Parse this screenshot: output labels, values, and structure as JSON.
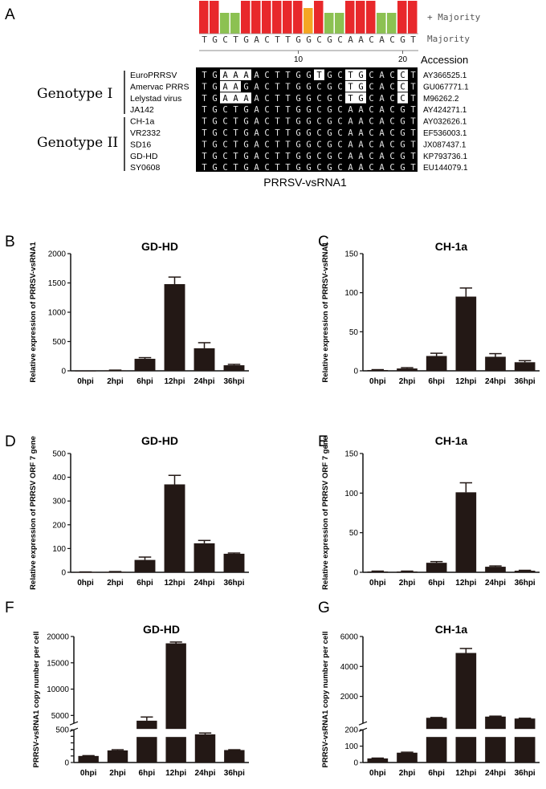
{
  "panel_a": {
    "letter": "A",
    "majority_plus_label": "+ Majority",
    "majority_label": "Majority",
    "majority_seq": [
      "T",
      "G",
      "C",
      "T",
      "G",
      "A",
      "C",
      "T",
      "T",
      "G",
      "G",
      "C",
      "G",
      "C",
      "A",
      "A",
      "C",
      "A",
      "C",
      "G",
      "T"
    ],
    "conservation": [
      "red",
      "red",
      "green",
      "green",
      "red",
      "red",
      "red",
      "red",
      "red",
      "red",
      "orange",
      "red",
      "green",
      "green",
      "red",
      "red",
      "red",
      "green",
      "green",
      "red",
      "red"
    ],
    "ruler_ticks": [
      "10",
      "20"
    ],
    "accession_header": "Accession",
    "genotype_1_label": "Genotype I",
    "genotype_2_label": "Genotype II",
    "rows": [
      {
        "strain": "EuroPRRSV",
        "seq": [
          "T",
          "G",
          "A",
          "A",
          "A",
          "A",
          "C",
          "T",
          "T",
          "G",
          "G",
          "T",
          "G",
          "C",
          "T",
          "G",
          "C",
          "A",
          "C",
          "C",
          "T"
        ],
        "accession": "AY366525.1"
      },
      {
        "strain": "Amervac PRRS",
        "seq": [
          "T",
          "G",
          "A",
          "A",
          "G",
          "A",
          "C",
          "T",
          "T",
          "G",
          "G",
          "C",
          "G",
          "C",
          "T",
          "G",
          "C",
          "A",
          "C",
          "C",
          "T"
        ],
        "accession": "GU067771.1"
      },
      {
        "strain": "Lelystad virus",
        "seq": [
          "T",
          "G",
          "A",
          "A",
          "A",
          "A",
          "C",
          "T",
          "T",
          "G",
          "G",
          "C",
          "G",
          "C",
          "T",
          "G",
          "C",
          "A",
          "C",
          "C",
          "T"
        ],
        "accession": "M96262.2"
      },
      {
        "strain": "JA142",
        "seq": [
          "T",
          "G",
          "C",
          "T",
          "G",
          "A",
          "C",
          "T",
          "T",
          "G",
          "G",
          "C",
          "G",
          "C",
          "A",
          "A",
          "C",
          "A",
          "C",
          "G",
          "T"
        ],
        "accession": "AY424271.1"
      },
      {
        "strain": "CH-1a",
        "seq": [
          "T",
          "G",
          "C",
          "T",
          "G",
          "A",
          "C",
          "T",
          "T",
          "G",
          "G",
          "C",
          "G",
          "C",
          "A",
          "A",
          "C",
          "A",
          "C",
          "G",
          "T"
        ],
        "accession": "AY032626.1"
      },
      {
        "strain": "VR2332",
        "seq": [
          "T",
          "G",
          "C",
          "T",
          "G",
          "A",
          "C",
          "T",
          "T",
          "G",
          "G",
          "C",
          "G",
          "C",
          "A",
          "A",
          "C",
          "A",
          "C",
          "G",
          "T"
        ],
        "accession": "EF536003.1"
      },
      {
        "strain": "SD16",
        "seq": [
          "T",
          "G",
          "C",
          "T",
          "G",
          "A",
          "C",
          "T",
          "T",
          "G",
          "G",
          "C",
          "G",
          "C",
          "A",
          "A",
          "C",
          "A",
          "C",
          "G",
          "T"
        ],
        "accession": "JX087437.1"
      },
      {
        "strain": "GD-HD",
        "seq": [
          "T",
          "G",
          "C",
          "T",
          "G",
          "A",
          "C",
          "T",
          "T",
          "G",
          "G",
          "C",
          "G",
          "C",
          "A",
          "A",
          "C",
          "A",
          "C",
          "G",
          "T"
        ],
        "accession": "KP793736.1"
      },
      {
        "strain": "SY0608",
        "seq": [
          "T",
          "G",
          "C",
          "T",
          "G",
          "A",
          "C",
          "T",
          "T",
          "G",
          "G",
          "C",
          "G",
          "C",
          "A",
          "A",
          "C",
          "A",
          "C",
          "G",
          "T"
        ],
        "accession": "EU144079.1"
      }
    ],
    "caption": "PRRSV-vsRNA1",
    "colors": {
      "red": "#e8282b",
      "green": "#8cc152",
      "orange": "#f5a623"
    }
  },
  "chart_data": [
    {
      "panel": "B",
      "type": "bar",
      "title": "GD-HD",
      "ylabel": "Relative expression of PRRSV-vsRNA1",
      "categories": [
        "0hpi",
        "2hpi",
        "6hpi",
        "12hpi",
        "24hpi",
        "36hpi"
      ],
      "values": [
        1,
        8,
        205,
        1480,
        385,
        95
      ],
      "errors": [
        0,
        4,
        20,
        120,
        95,
        15
      ],
      "ylim": [
        0,
        2000
      ],
      "ticks": [
        "0",
        "500",
        "1000",
        "1500",
        "2000"
      ],
      "tick_values": [
        0,
        500,
        1000,
        1500,
        2000
      ]
    },
    {
      "panel": "C",
      "type": "bar",
      "title": "CH-1a",
      "ylabel": "Relative expression of PRRSV-vsRNA1",
      "categories": [
        "0hpi",
        "2hpi",
        "6hpi",
        "12hpi",
        "24hpi",
        "36hpi"
      ],
      "values": [
        1,
        3,
        19,
        95,
        18,
        11
      ],
      "errors": [
        0.5,
        1,
        3.5,
        11,
        4,
        2
      ],
      "ylim": [
        0,
        150
      ],
      "ticks": [
        "0",
        "50",
        "100",
        "150"
      ],
      "tick_values": [
        0,
        50,
        100,
        150
      ]
    },
    {
      "panel": "D",
      "type": "bar",
      "title": "GD-HD",
      "ylabel": "Relative expression of PRRSV ORF 7 gene",
      "categories": [
        "0hpi",
        "2hpi",
        "6hpi",
        "12hpi",
        "24hpi",
        "36hpi"
      ],
      "values": [
        1,
        2,
        52,
        370,
        122,
        78
      ],
      "errors": [
        0.5,
        1,
        12,
        38,
        12,
        3
      ],
      "ylim": [
        0,
        500
      ],
      "ticks": [
        "0",
        "100",
        "200",
        "300",
        "400",
        "500"
      ],
      "tick_values": [
        0,
        100,
        200,
        300,
        400,
        500
      ]
    },
    {
      "panel": "E",
      "type": "bar",
      "title": "CH-1a",
      "ylabel": "Relative expression of PRRSV ORF 7 gene",
      "categories": [
        "0hpi",
        "2hpi",
        "6hpi",
        "12hpi",
        "24hpi",
        "36hpi"
      ],
      "values": [
        1,
        1,
        12,
        101,
        7,
        2
      ],
      "errors": [
        0.5,
        0.5,
        1.5,
        12,
        1,
        0.5
      ],
      "ylim": [
        0,
        150
      ],
      "ticks": [
        "0",
        "50",
        "100",
        "150"
      ],
      "tick_values": [
        0,
        50,
        100,
        150
      ]
    },
    {
      "panel": "F",
      "type": "bar",
      "title": "GD-HD",
      "ylabel": "PRRSV-vsRNA1 copy number per cell",
      "categories": [
        "0hpi",
        "2hpi",
        "6hpi",
        "12hpi",
        "24hpi",
        "36hpi"
      ],
      "values": [
        100,
        185,
        4000,
        18700,
        430,
        190
      ],
      "errors": [
        5,
        10,
        700,
        250,
        20,
        5
      ],
      "broken_axis": {
        "lower": [
          0,
          500
        ],
        "upper": [
          3500,
          20000
        ]
      },
      "ticks": [
        "0",
        "100",
        "200",
        "300",
        "400",
        "500",
        "5000",
        "10000",
        "15000",
        "20000"
      ],
      "tick_values": [
        0,
        100,
        200,
        300,
        400,
        500,
        5000,
        10000,
        15000,
        20000
      ],
      "tick_labels_shown": [
        "0",
        "500",
        "5000",
        "10000",
        "15000",
        "20000"
      ]
    },
    {
      "panel": "G",
      "type": "bar",
      "title": "CH-1a",
      "ylabel": "PRRSV-vsRNA1 copy number per cell",
      "categories": [
        "0hpi",
        "2hpi",
        "6hpi",
        "12hpi",
        "24hpi",
        "36hpi"
      ],
      "values": [
        25,
        60,
        570,
        4900,
        650,
        520
      ],
      "errors": [
        2,
        3,
        20,
        300,
        30,
        20
      ],
      "broken_axis": {
        "lower": [
          0,
          200
        ],
        "upper": [
          200,
          6000
        ]
      },
      "ticks": [
        "0",
        "100",
        "200",
        "2000",
        "4000",
        "6000"
      ],
      "tick_values": [
        0,
        100,
        200,
        2000,
        4000,
        6000
      ],
      "tick_labels_shown": [
        "0",
        "100",
        "200",
        "2000",
        "4000",
        "6000"
      ]
    }
  ],
  "colors": {
    "bar": "#231815",
    "axis": "#111111"
  }
}
